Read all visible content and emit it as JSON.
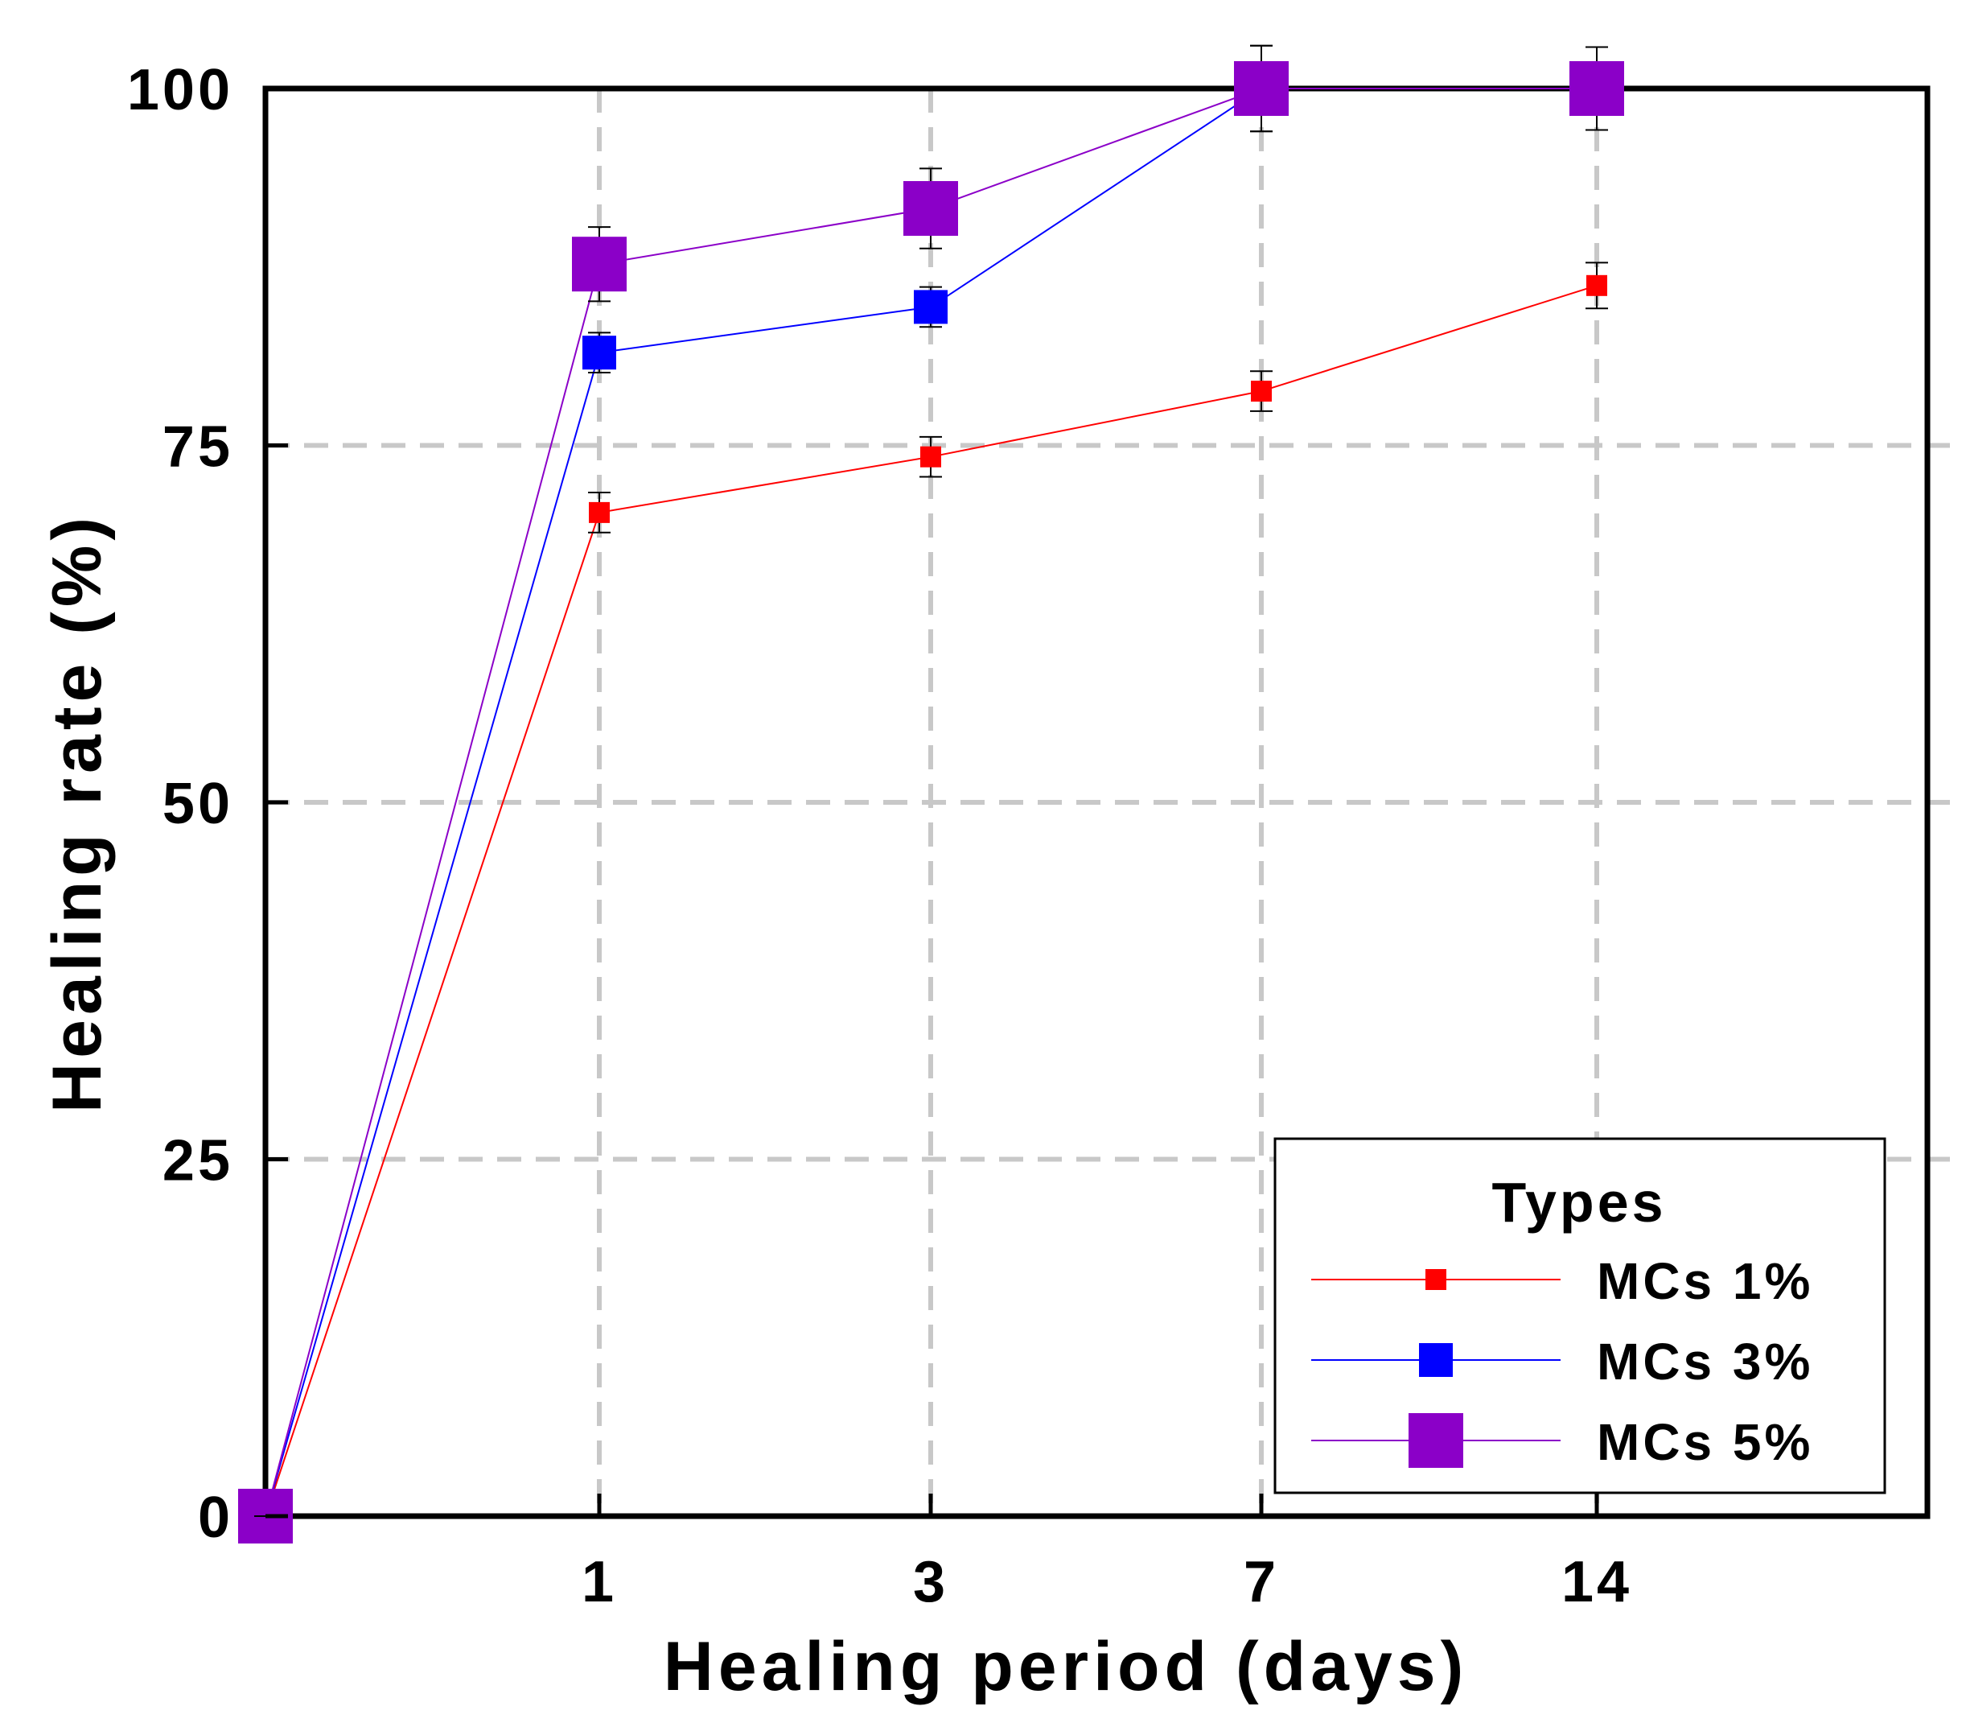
{
  "chart_data": {
    "type": "line",
    "xlabel": "Healing period (days)",
    "ylabel": "Healing rate (%)",
    "categories": [
      "0",
      "1",
      "3",
      "7",
      "14"
    ],
    "x_tick_labels": [
      "1",
      "3",
      "7",
      "14"
    ],
    "y_ticks": [
      0,
      25,
      50,
      75,
      100
    ],
    "ylim": [
      0,
      100
    ],
    "grid": true,
    "legend": {
      "title": "Types",
      "placement": "bottom-right"
    },
    "series": [
      {
        "name": "MCs 1%",
        "color": "#ff0000",
        "marker": "square-small",
        "values": [
          0,
          70.3,
          74.2,
          78.8,
          86.2
        ],
        "errors": [
          0,
          1.4,
          1.4,
          1.4,
          1.6
        ]
      },
      {
        "name": "MCs 3%",
        "color": "#0000ff",
        "marker": "square-medium",
        "values": [
          0,
          81.5,
          84.7,
          100,
          100
        ],
        "errors": [
          0,
          1.4,
          1.4,
          3.0,
          2.9
        ]
      },
      {
        "name": "MCs 5%",
        "color": "#8b00c8",
        "marker": "square-large",
        "values": [
          0,
          87.7,
          91.6,
          100,
          100
        ],
        "errors": [
          0,
          2.6,
          2.8,
          3.0,
          2.9
        ]
      }
    ]
  }
}
